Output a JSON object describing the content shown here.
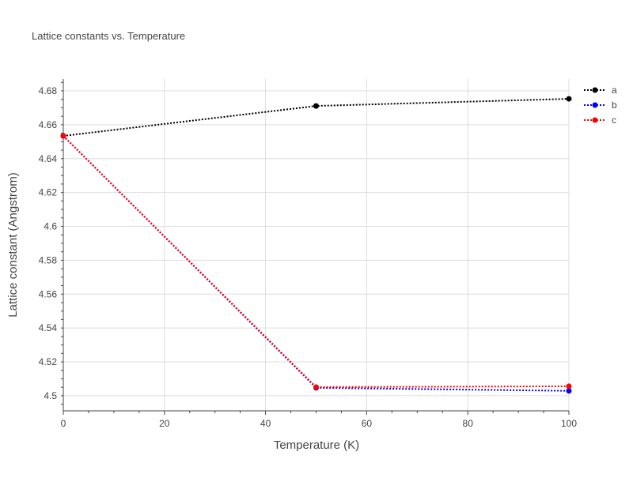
{
  "chart_data": {
    "type": "line",
    "title": "Lattice constants vs. Temperature",
    "xlabel": "Temperature (K)",
    "ylabel": "Lattice constant (Angstrom)",
    "xlim": [
      0,
      100
    ],
    "ylim": [
      4.4911,
      4.687
    ],
    "xticks": [
      0,
      20,
      40,
      60,
      80,
      100
    ],
    "yticks": [
      4.5,
      4.52,
      4.54,
      4.56,
      4.58,
      4.6,
      4.62,
      4.64,
      4.66,
      4.68
    ],
    "ytick_labels": [
      "4.5",
      "4.52",
      "4.54",
      "4.56",
      "4.58",
      "4.6",
      "4.62",
      "4.64",
      "4.66",
      "4.68"
    ],
    "grid": true,
    "legend_position": "top-right",
    "x": [
      0,
      50,
      100
    ],
    "series": [
      {
        "name": "a",
        "color": "#000000",
        "values": [
          4.6534,
          4.6711,
          4.6753
        ]
      },
      {
        "name": "b",
        "color": "#0000ff",
        "values": [
          4.6534,
          4.5047,
          4.5029
        ]
      },
      {
        "name": "c",
        "color": "#ff0000",
        "values": [
          4.6534,
          4.5051,
          4.5056
        ]
      }
    ]
  }
}
